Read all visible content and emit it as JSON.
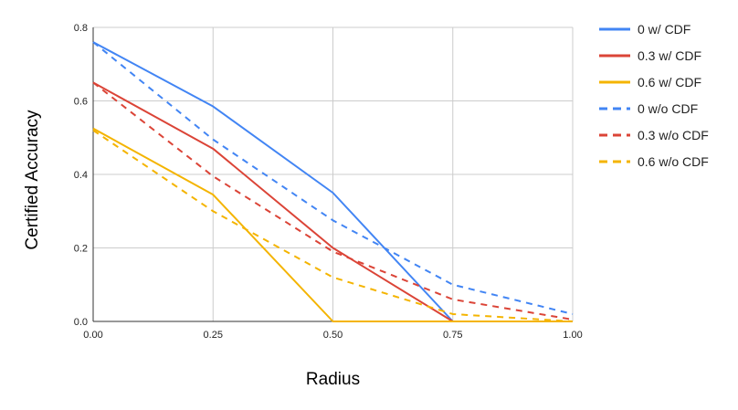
{
  "chart_data": {
    "type": "line",
    "title": "",
    "xlabel": "Radius",
    "ylabel": "Certified Accuracy",
    "xlim": [
      0,
      1
    ],
    "ylim": [
      0,
      0.8
    ],
    "x_ticks": [
      "0.00",
      "0.25",
      "0.50",
      "0.75",
      "1.00"
    ],
    "y_ticks": [
      "0.0",
      "0.2",
      "0.4",
      "0.6",
      "0.8"
    ],
    "grid": true,
    "legend_position": "right",
    "x": [
      0,
      0.25,
      0.5,
      0.75,
      1.0
    ],
    "series": [
      {
        "name": "0 w/ CDF",
        "color": "#4285F4",
        "dash": "solid",
        "values": [
          0.76,
          0.585,
          0.35,
          0.0,
          0.0
        ]
      },
      {
        "name": "0.3 w/ CDF",
        "color": "#DB4437",
        "dash": "solid",
        "values": [
          0.65,
          0.47,
          0.2,
          0.0,
          0.0
        ]
      },
      {
        "name": "0.6 w/ CDF",
        "color": "#F4B400",
        "dash": "solid",
        "values": [
          0.525,
          0.345,
          0.0,
          0.0,
          0.0
        ]
      },
      {
        "name": "0 w/o CDF",
        "color": "#4285F4",
        "dash": "dashed",
        "values": [
          0.76,
          0.495,
          0.275,
          0.1,
          0.02
        ]
      },
      {
        "name": "0.3 w/o CDF",
        "color": "#DB4437",
        "dash": "dashed",
        "values": [
          0.65,
          0.395,
          0.19,
          0.06,
          0.005
        ]
      },
      {
        "name": "0.6 w/o CDF",
        "color": "#F4B400",
        "dash": "dashed",
        "values": [
          0.52,
          0.3,
          0.12,
          0.02,
          0.0
        ]
      }
    ]
  }
}
